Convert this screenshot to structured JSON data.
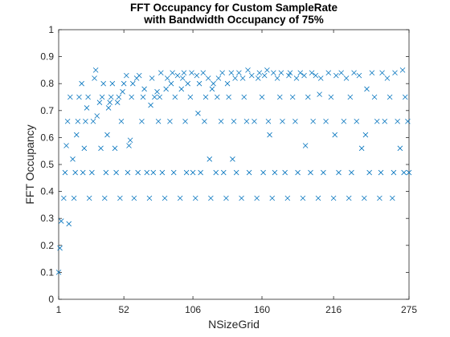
{
  "chart_data": {
    "type": "scatter",
    "title": [
      "FFT Occupancy for Custom SampleRate",
      "with Bandwidth Occupancy of 75%"
    ],
    "x_label": "NSizeGrid",
    "y_label": "FFT Occupancy",
    "xlim": [
      1,
      275
    ],
    "ylim": [
      0,
      1
    ],
    "xticks": [
      1,
      52,
      106,
      160,
      216,
      275
    ],
    "yticks": [
      0,
      0.1,
      0.2,
      0.3,
      0.4,
      0.5,
      0.6,
      0.7,
      0.8,
      0.9,
      1
    ],
    "marker": "x",
    "series": [
      {
        "color": "#0072bd",
        "x": [
          1,
          2,
          3,
          5,
          6,
          7,
          8,
          9,
          10,
          12,
          13,
          14,
          15,
          16,
          17,
          19,
          20,
          21,
          22,
          23,
          24,
          25,
          27,
          28,
          29,
          30,
          31,
          33,
          34,
          35,
          36,
          37,
          38,
          39,
          40,
          41,
          42,
          43,
          45,
          46,
          47,
          48,
          49,
          50,
          51,
          52,
          54,
          55,
          56,
          57,
          58,
          59,
          60,
          62,
          63,
          64,
          66,
          67,
          68,
          70,
          72,
          73,
          74,
          75,
          76,
          78,
          79,
          80,
          81,
          82,
          84,
          85,
          86,
          88,
          89,
          90,
          91,
          92,
          94,
          96,
          97,
          98,
          99,
          100,
          101,
          102,
          104,
          105,
          106,
          108,
          109,
          110,
          111,
          112,
          114,
          115,
          116,
          118,
          119,
          120,
          121,
          122,
          124,
          125,
          126,
          128,
          129,
          130,
          132,
          133,
          134,
          136,
          137,
          138,
          139,
          140,
          142,
          144,
          145,
          146,
          148,
          149,
          150,
          152,
          154,
          156,
          157,
          158,
          160,
          161,
          162,
          164,
          165,
          166,
          168,
          169,
          170,
          172,
          174,
          175,
          176,
          178,
          180,
          181,
          182,
          184,
          186,
          187,
          188,
          190,
          192,
          193,
          194,
          196,
          198,
          199,
          200,
          202,
          204,
          205,
          206,
          208,
          210,
          212,
          214,
          216,
          217,
          218,
          220,
          222,
          224,
          226,
          228,
          229,
          230,
          232,
          234,
          236,
          238,
          240,
          241,
          242,
          244,
          246,
          248,
          250,
          252,
          253,
          254,
          256,
          258,
          260,
          262,
          263,
          264,
          266,
          268,
          270,
          271,
          272,
          274,
          275
        ],
        "values": [
          0.1,
          0.19,
          0.29,
          0.375,
          0.47,
          0.57,
          0.66,
          0.28,
          0.75,
          0.52,
          0.375,
          0.47,
          0.61,
          0.66,
          0.75,
          0.8,
          0.47,
          0.56,
          0.66,
          0.71,
          0.75,
          0.375,
          0.47,
          0.66,
          0.82,
          0.85,
          0.68,
          0.73,
          0.56,
          0.75,
          0.8,
          0.375,
          0.47,
          0.61,
          0.71,
          0.73,
          0.75,
          0.8,
          0.56,
          0.47,
          0.73,
          0.75,
          0.375,
          0.66,
          0.77,
          0.8,
          0.83,
          0.47,
          0.57,
          0.59,
          0.75,
          0.8,
          0.375,
          0.82,
          0.47,
          0.83,
          0.66,
          0.75,
          0.78,
          0.47,
          0.375,
          0.72,
          0.82,
          0.47,
          0.75,
          0.77,
          0.66,
          0.75,
          0.84,
          0.47,
          0.375,
          0.78,
          0.82,
          0.66,
          0.8,
          0.84,
          0.47,
          0.75,
          0.83,
          0.375,
          0.78,
          0.82,
          0.84,
          0.66,
          0.47,
          0.8,
          0.75,
          0.84,
          0.47,
          0.375,
          0.83,
          0.69,
          0.8,
          0.47,
          0.84,
          0.66,
          0.75,
          0.82,
          0.52,
          0.375,
          0.78,
          0.8,
          0.47,
          0.75,
          0.82,
          0.66,
          0.84,
          0.47,
          0.375,
          0.8,
          0.75,
          0.84,
          0.52,
          0.66,
          0.82,
          0.47,
          0.84,
          0.375,
          0.82,
          0.75,
          0.66,
          0.85,
          0.47,
          0.83,
          0.66,
          0.375,
          0.82,
          0.84,
          0.75,
          0.47,
          0.83,
          0.85,
          0.66,
          0.61,
          0.375,
          0.84,
          0.47,
          0.82,
          0.75,
          0.84,
          0.66,
          0.47,
          0.375,
          0.83,
          0.84,
          0.75,
          0.66,
          0.82,
          0.47,
          0.84,
          0.375,
          0.83,
          0.57,
          0.75,
          0.47,
          0.84,
          0.66,
          0.83,
          0.375,
          0.76,
          0.82,
          0.47,
          0.66,
          0.84,
          0.75,
          0.375,
          0.61,
          0.83,
          0.47,
          0.84,
          0.66,
          0.82,
          0.375,
          0.75,
          0.47,
          0.84,
          0.66,
          0.83,
          0.56,
          0.375,
          0.61,
          0.78,
          0.47,
          0.84,
          0.75,
          0.66,
          0.375,
          0.47,
          0.84,
          0.66,
          0.82,
          0.75,
          0.375,
          0.47,
          0.84,
          0.66,
          0.56,
          0.85,
          0.47,
          0.75,
          0.66,
          0.47
        ]
      }
    ]
  }
}
